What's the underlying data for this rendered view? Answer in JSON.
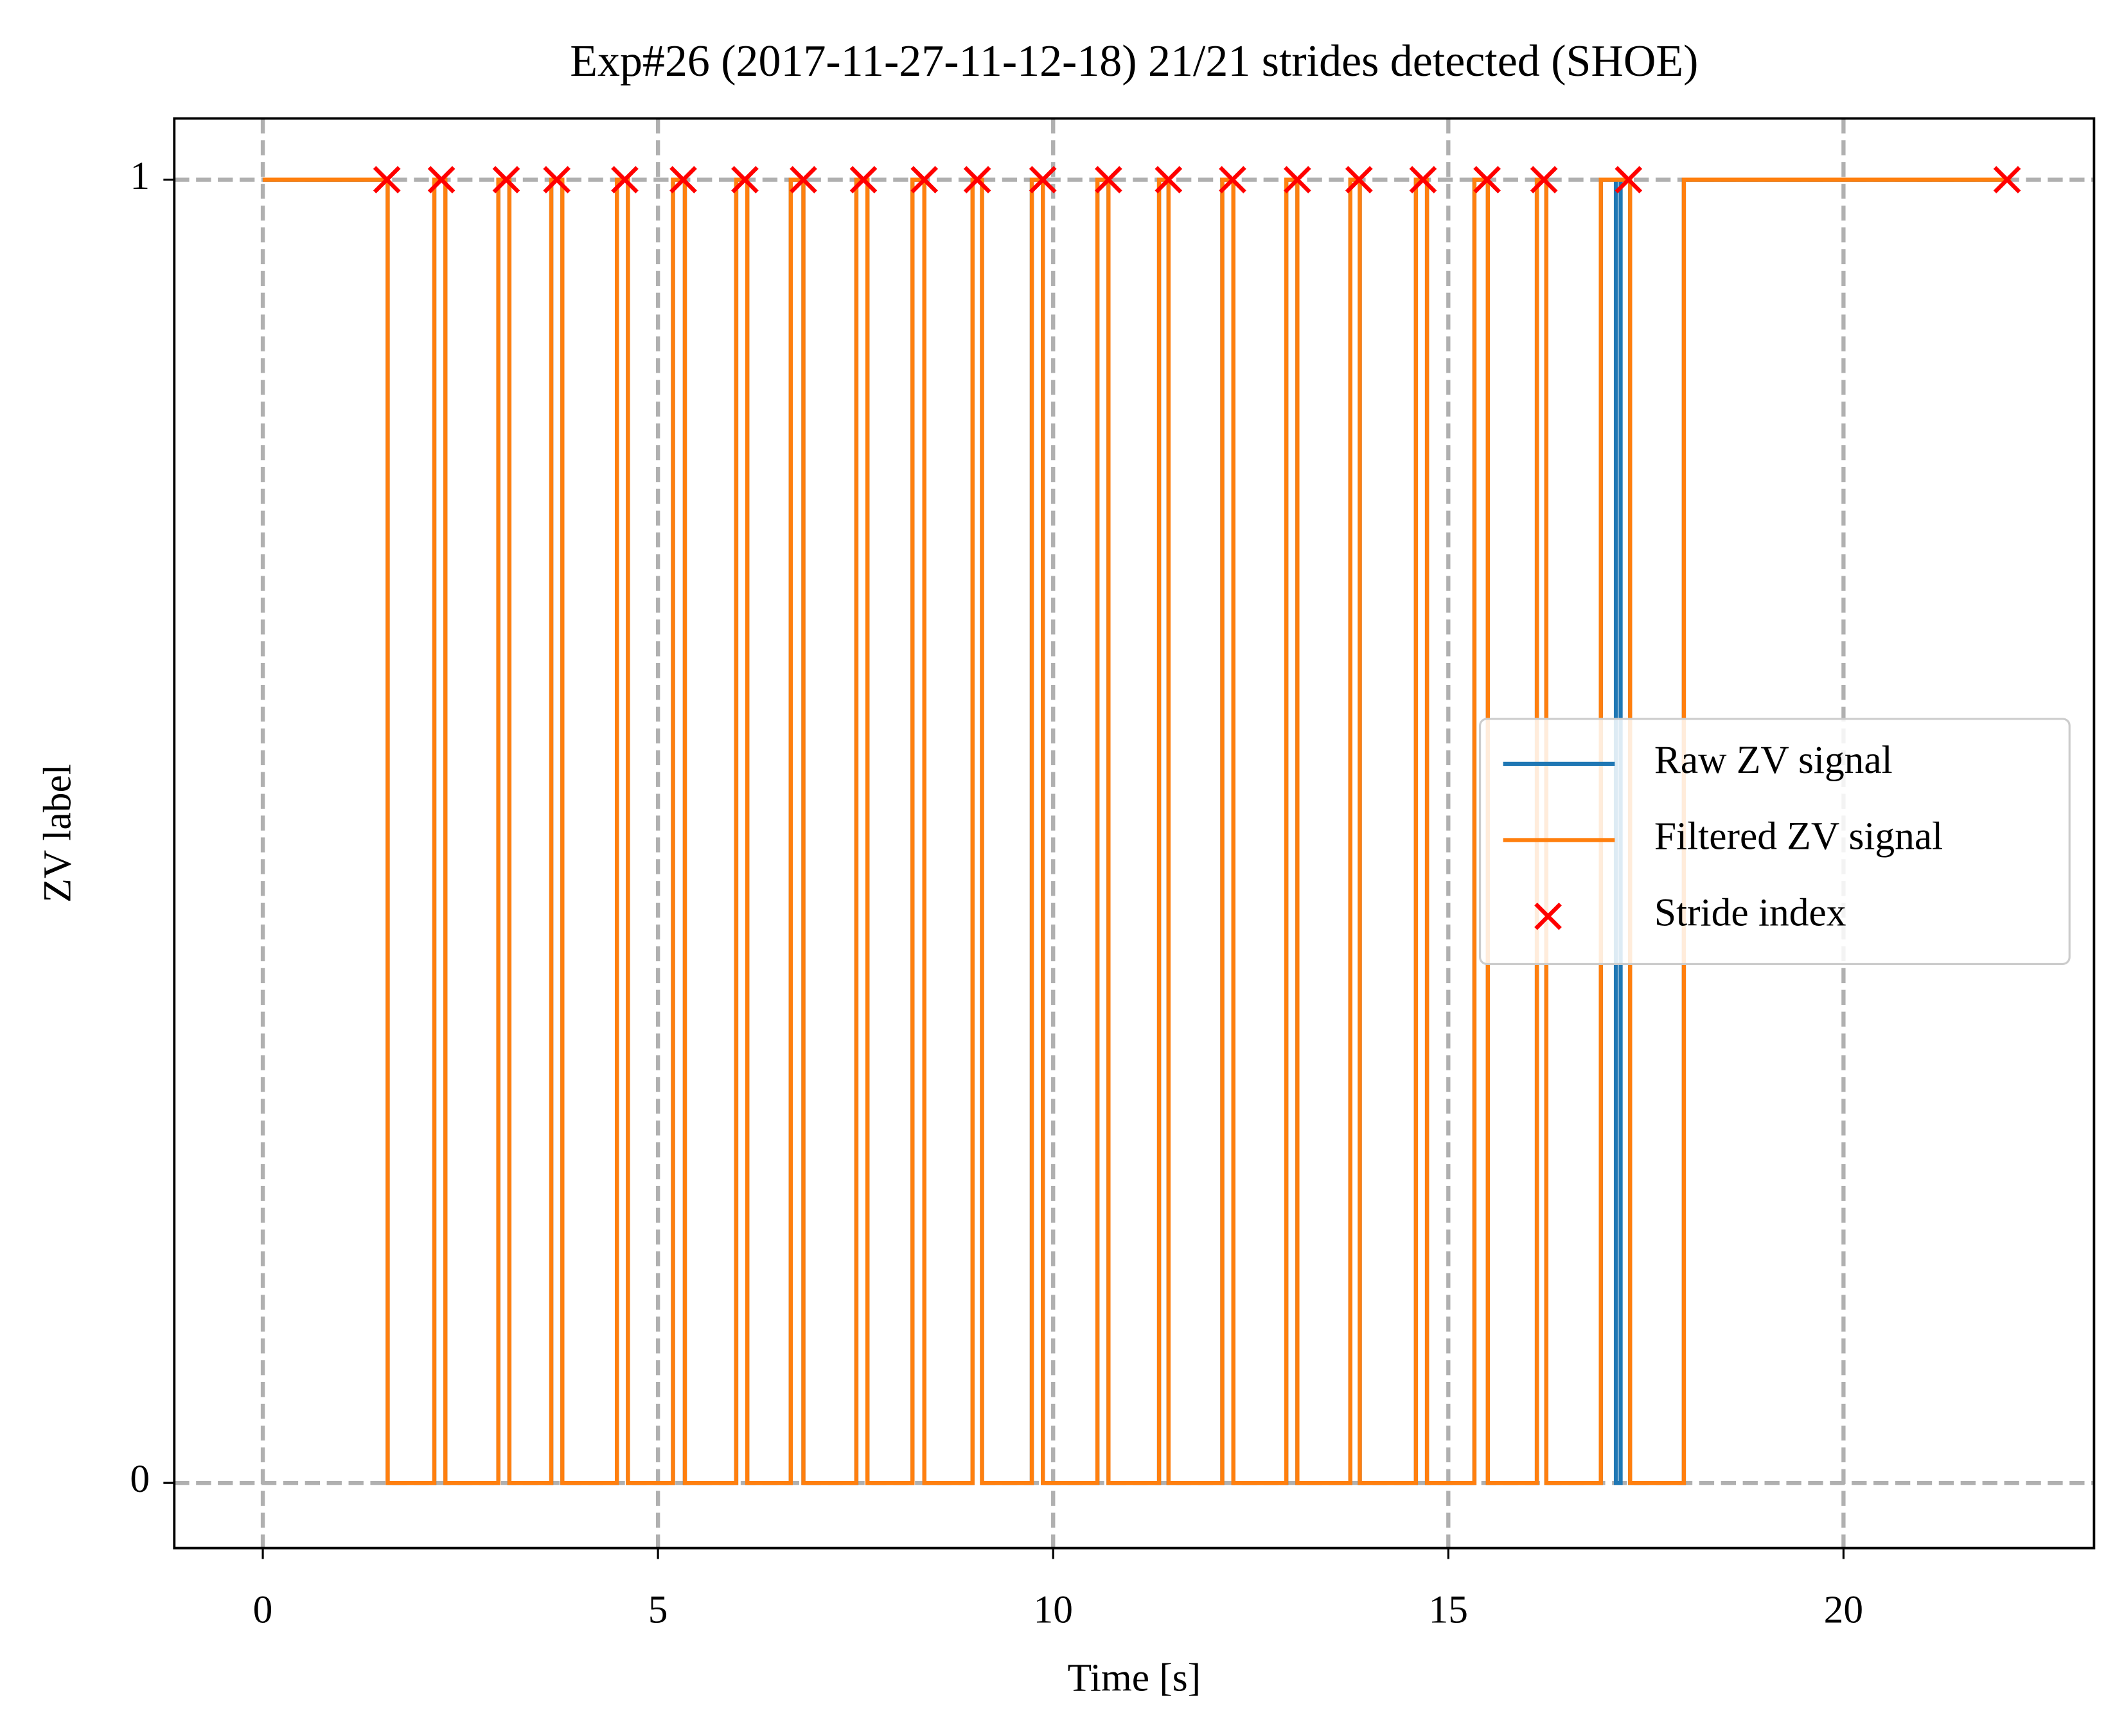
{
  "chart_data": {
    "type": "line",
    "title": "Exp#26 (2017-11-27-11-12-18) 21/21 strides detected (SHOE)",
    "xlabel": "Time [s]",
    "ylabel": "ZV label",
    "xlim": [
      -1.12,
      23.17
    ],
    "ylim": [
      -0.05,
      1.047
    ],
    "xticks": [
      0,
      5,
      10,
      15,
      20
    ],
    "yticks": [
      0,
      1
    ],
    "grid": true,
    "legend_loc": "center right",
    "series": [
      {
        "name": "Raw ZV signal",
        "type": "line",
        "color": "#1f77b4",
        "x": [
          0,
          1.58,
          1.58,
          2.17,
          2.17,
          2.31,
          2.31,
          2.98,
          2.98,
          3.12,
          3.12,
          3.65,
          3.65,
          3.79,
          3.79,
          4.48,
          4.48,
          4.62,
          4.62,
          5.19,
          5.19,
          5.34,
          5.34,
          5.99,
          5.99,
          6.13,
          6.13,
          6.68,
          6.68,
          6.84,
          6.84,
          7.51,
          7.51,
          7.65,
          7.65,
          8.22,
          8.22,
          8.37,
          8.37,
          8.98,
          8.98,
          9.1,
          9.1,
          9.73,
          9.73,
          9.87,
          9.87,
          10.56,
          10.56,
          10.7,
          10.7,
          11.34,
          11.34,
          11.46,
          11.46,
          12.14,
          12.14,
          12.28,
          12.28,
          12.95,
          12.95,
          13.09,
          13.09,
          13.76,
          13.76,
          13.88,
          13.88,
          14.59,
          14.59,
          14.73,
          14.73,
          15.33,
          15.33,
          15.5,
          15.5,
          16.12,
          16.12,
          16.24,
          16.24,
          16.93,
          16.93,
          17.12,
          17.12,
          17.18,
          17.18,
          17.3,
          17.3,
          17.98,
          17.98,
          22.12
        ],
        "values": [
          1,
          1,
          0,
          0,
          1,
          1,
          0,
          0,
          1,
          1,
          0,
          0,
          1,
          1,
          0,
          0,
          1,
          1,
          0,
          0,
          1,
          1,
          0,
          0,
          1,
          1,
          0,
          0,
          1,
          1,
          0,
          0,
          1,
          1,
          0,
          0,
          1,
          1,
          0,
          0,
          1,
          1,
          0,
          0,
          1,
          1,
          0,
          0,
          1,
          1,
          0,
          0,
          1,
          1,
          0,
          0,
          1,
          1,
          0,
          0,
          1,
          1,
          0,
          0,
          1,
          1,
          0,
          0,
          1,
          1,
          0,
          0,
          1,
          1,
          0,
          0,
          1,
          1,
          0,
          0,
          1,
          1,
          0,
          0,
          1,
          1,
          0,
          0,
          1,
          1
        ]
      },
      {
        "name": "Filtered ZV signal",
        "type": "line",
        "color": "#ff7f0e",
        "x": [
          0,
          1.58,
          1.58,
          2.17,
          2.17,
          2.31,
          2.31,
          2.98,
          2.98,
          3.12,
          3.12,
          3.65,
          3.65,
          3.79,
          3.79,
          4.48,
          4.48,
          4.62,
          4.62,
          5.19,
          5.19,
          5.34,
          5.34,
          5.99,
          5.99,
          6.13,
          6.13,
          6.68,
          6.68,
          6.84,
          6.84,
          7.51,
          7.51,
          7.65,
          7.65,
          8.22,
          8.22,
          8.37,
          8.37,
          8.98,
          8.98,
          9.1,
          9.1,
          9.73,
          9.73,
          9.87,
          9.87,
          10.56,
          10.56,
          10.7,
          10.7,
          11.34,
          11.34,
          11.46,
          11.46,
          12.14,
          12.14,
          12.28,
          12.28,
          12.95,
          12.95,
          13.09,
          13.09,
          13.76,
          13.76,
          13.88,
          13.88,
          14.59,
          14.59,
          14.73,
          14.73,
          15.33,
          15.33,
          15.5,
          15.5,
          16.12,
          16.12,
          16.24,
          16.24,
          16.93,
          16.93,
          17.3,
          17.3,
          17.98,
          17.98,
          22.12
        ],
        "values": [
          1,
          1,
          0,
          0,
          1,
          1,
          0,
          0,
          1,
          1,
          0,
          0,
          1,
          1,
          0,
          0,
          1,
          1,
          0,
          0,
          1,
          1,
          0,
          0,
          1,
          1,
          0,
          0,
          1,
          1,
          0,
          0,
          1,
          1,
          0,
          0,
          1,
          1,
          0,
          0,
          1,
          1,
          0,
          0,
          1,
          1,
          0,
          0,
          1,
          1,
          0,
          0,
          1,
          1,
          0,
          0,
          1,
          1,
          0,
          0,
          1,
          1,
          0,
          0,
          1,
          1,
          0,
          0,
          1,
          1,
          0,
          0,
          1,
          1,
          0,
          0,
          1,
          1,
          0,
          0,
          1,
          1,
          0,
          0,
          1,
          1
        ]
      },
      {
        "name": "Stride index",
        "type": "scatter",
        "marker": "x",
        "color": "#ff0000",
        "x": [
          1.57,
          2.26,
          3.08,
          3.72,
          4.58,
          5.32,
          6.1,
          6.84,
          7.6,
          8.37,
          9.04,
          9.87,
          10.7,
          11.46,
          12.27,
          13.09,
          13.87,
          14.68,
          15.49,
          16.21,
          17.28,
          22.07
        ],
        "values": [
          1,
          1,
          1,
          1,
          1,
          1,
          1,
          1,
          1,
          1,
          1,
          1,
          1,
          1,
          1,
          1,
          1,
          1,
          1,
          1,
          1,
          1
        ]
      }
    ]
  }
}
